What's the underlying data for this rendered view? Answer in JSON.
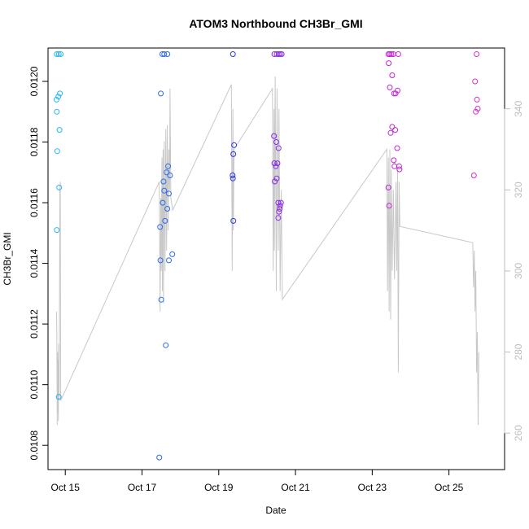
{
  "chart_data": {
    "type": "scatter",
    "title": "ATOM3 Northbound CH3Br_GMI",
    "xlabel": "Date",
    "ylabel": "CH3Br_GMI",
    "xlim": [
      14.55,
      26.45
    ],
    "ylim": [
      0.01072,
      0.01211
    ],
    "x_ticks": [
      {
        "value": 15,
        "label": "Oct 15"
      },
      {
        "value": 17,
        "label": "Oct 17"
      },
      {
        "value": 19,
        "label": "Oct 19"
      },
      {
        "value": 21,
        "label": "Oct 21"
      },
      {
        "value": 23,
        "label": "Oct 23"
      },
      {
        "value": 25,
        "label": "Oct 25"
      }
    ],
    "y_ticks": [
      {
        "value": 0.0108,
        "label": "0.0108"
      },
      {
        "value": 0.011,
        "label": "0.0110"
      },
      {
        "value": 0.0112,
        "label": "0.0112"
      },
      {
        "value": 0.0114,
        "label": "0.0114"
      },
      {
        "value": 0.0116,
        "label": "0.0116"
      },
      {
        "value": 0.0118,
        "label": "0.0118"
      },
      {
        "value": 0.012,
        "label": "0.0120"
      }
    ],
    "secondary_axis": {
      "ylim": [
        251,
        355
      ],
      "ticks": [
        {
          "value": 260,
          "label": "260"
        },
        {
          "value": 280,
          "label": "280"
        },
        {
          "value": 300,
          "label": "300"
        },
        {
          "value": 320,
          "label": "320"
        },
        {
          "value": 340,
          "label": "340"
        }
      ],
      "color": "#bebebe"
    },
    "points": [
      {
        "x": 14.78,
        "y": 0.01209,
        "color": "#29b6f6"
      },
      {
        "x": 14.83,
        "y": 0.01209,
        "color": "#29b6f6"
      },
      {
        "x": 14.88,
        "y": 0.01209,
        "color": "#29b6f6"
      },
      {
        "x": 14.77,
        "y": 0.01194,
        "color": "#29b6f6"
      },
      {
        "x": 14.82,
        "y": 0.01195,
        "color": "#29b6f6"
      },
      {
        "x": 14.86,
        "y": 0.01196,
        "color": "#29b6f6"
      },
      {
        "x": 14.78,
        "y": 0.0119,
        "color": "#29b6f6"
      },
      {
        "x": 14.85,
        "y": 0.01184,
        "color": "#29b6f6"
      },
      {
        "x": 14.79,
        "y": 0.01177,
        "color": "#29b6f6"
      },
      {
        "x": 14.84,
        "y": 0.01165,
        "color": "#29b6f6"
      },
      {
        "x": 14.78,
        "y": 0.01151,
        "color": "#29b6f6"
      },
      {
        "x": 14.83,
        "y": 0.01096,
        "color": "#29b6f6"
      },
      {
        "x": 17.45,
        "y": 0.01076,
        "color": "#2c6ce8"
      },
      {
        "x": 17.47,
        "y": 0.01152,
        "color": "#2c6ce8"
      },
      {
        "x": 17.48,
        "y": 0.01141,
        "color": "#2c6ce8"
      },
      {
        "x": 17.5,
        "y": 0.01128,
        "color": "#2c6ce8"
      },
      {
        "x": 17.49,
        "y": 0.01196,
        "color": "#2c6ce8"
      },
      {
        "x": 17.53,
        "y": 0.01209,
        "color": "#2c6ce8"
      },
      {
        "x": 17.58,
        "y": 0.01209,
        "color": "#2c6ce8"
      },
      {
        "x": 17.66,
        "y": 0.01209,
        "color": "#2c6ce8"
      },
      {
        "x": 17.54,
        "y": 0.0116,
        "color": "#2c6ce8"
      },
      {
        "x": 17.56,
        "y": 0.01167,
        "color": "#2c6ce8"
      },
      {
        "x": 17.58,
        "y": 0.01164,
        "color": "#2c6ce8"
      },
      {
        "x": 17.6,
        "y": 0.01154,
        "color": "#2c6ce8"
      },
      {
        "x": 17.62,
        "y": 0.01113,
        "color": "#2c6ce8"
      },
      {
        "x": 17.64,
        "y": 0.0117,
        "color": "#2c6ce8"
      },
      {
        "x": 17.66,
        "y": 0.01158,
        "color": "#2c6ce8"
      },
      {
        "x": 17.68,
        "y": 0.01172,
        "color": "#2c6ce8"
      },
      {
        "x": 17.7,
        "y": 0.01163,
        "color": "#2c6ce8"
      },
      {
        "x": 17.7,
        "y": 0.01141,
        "color": "#2c6ce8"
      },
      {
        "x": 17.73,
        "y": 0.01169,
        "color": "#2c6ce8"
      },
      {
        "x": 17.79,
        "y": 0.01143,
        "color": "#2c6ce8"
      },
      {
        "x": 19.37,
        "y": 0.01209,
        "color": "#2a38e0"
      },
      {
        "x": 19.38,
        "y": 0.01176,
        "color": "#2a38e0"
      },
      {
        "x": 19.4,
        "y": 0.01179,
        "color": "#2a38e0"
      },
      {
        "x": 19.36,
        "y": 0.01169,
        "color": "#2a38e0"
      },
      {
        "x": 19.37,
        "y": 0.01168,
        "color": "#2a38e0"
      },
      {
        "x": 19.38,
        "y": 0.01154,
        "color": "#2a38e0"
      },
      {
        "x": 20.45,
        "y": 0.01209,
        "color": "#8a2be2"
      },
      {
        "x": 20.51,
        "y": 0.01209,
        "color": "#8a2be2"
      },
      {
        "x": 20.56,
        "y": 0.01209,
        "color": "#8a2be2"
      },
      {
        "x": 20.6,
        "y": 0.01209,
        "color": "#8a2be2"
      },
      {
        "x": 20.64,
        "y": 0.01209,
        "color": "#8a2be2"
      },
      {
        "x": 20.44,
        "y": 0.01182,
        "color": "#8a2be2"
      },
      {
        "x": 20.5,
        "y": 0.0118,
        "color": "#8a2be2"
      },
      {
        "x": 20.56,
        "y": 0.01178,
        "color": "#8a2be2"
      },
      {
        "x": 20.45,
        "y": 0.01173,
        "color": "#8a2be2"
      },
      {
        "x": 20.49,
        "y": 0.01172,
        "color": "#8a2be2"
      },
      {
        "x": 20.53,
        "y": 0.01173,
        "color": "#8a2be2"
      },
      {
        "x": 20.46,
        "y": 0.01167,
        "color": "#8a2be2"
      },
      {
        "x": 20.51,
        "y": 0.01168,
        "color": "#8a2be2"
      },
      {
        "x": 20.55,
        "y": 0.0116,
        "color": "#8a2be2"
      },
      {
        "x": 20.6,
        "y": 0.01159,
        "color": "#8a2be2"
      },
      {
        "x": 20.62,
        "y": 0.0116,
        "color": "#8a2be2"
      },
      {
        "x": 20.57,
        "y": 0.01157,
        "color": "#8a2be2"
      },
      {
        "x": 20.59,
        "y": 0.01158,
        "color": "#8a2be2"
      },
      {
        "x": 20.55,
        "y": 0.01155,
        "color": "#8a2be2"
      },
      {
        "x": 23.42,
        "y": 0.01209,
        "color": "#c026d3"
      },
      {
        "x": 23.46,
        "y": 0.01209,
        "color": "#c026d3"
      },
      {
        "x": 23.5,
        "y": 0.01209,
        "color": "#c026d3"
      },
      {
        "x": 23.55,
        "y": 0.01209,
        "color": "#c026d3"
      },
      {
        "x": 23.68,
        "y": 0.01209,
        "color": "#c026d3"
      },
      {
        "x": 23.43,
        "y": 0.01206,
        "color": "#c026d3"
      },
      {
        "x": 23.52,
        "y": 0.01202,
        "color": "#c026d3"
      },
      {
        "x": 23.46,
        "y": 0.01198,
        "color": "#c026d3"
      },
      {
        "x": 23.57,
        "y": 0.01196,
        "color": "#c026d3"
      },
      {
        "x": 23.61,
        "y": 0.01196,
        "color": "#c026d3"
      },
      {
        "x": 23.66,
        "y": 0.01197,
        "color": "#c026d3"
      },
      {
        "x": 23.52,
        "y": 0.01185,
        "color": "#c026d3"
      },
      {
        "x": 23.48,
        "y": 0.01183,
        "color": "#c026d3"
      },
      {
        "x": 23.6,
        "y": 0.01184,
        "color": "#c026d3"
      },
      {
        "x": 23.65,
        "y": 0.01178,
        "color": "#c026d3"
      },
      {
        "x": 23.56,
        "y": 0.01174,
        "color": "#c026d3"
      },
      {
        "x": 23.58,
        "y": 0.01172,
        "color": "#c026d3"
      },
      {
        "x": 23.7,
        "y": 0.01172,
        "color": "#c026d3"
      },
      {
        "x": 23.71,
        "y": 0.01171,
        "color": "#c026d3"
      },
      {
        "x": 23.42,
        "y": 0.01165,
        "color": "#c026d3"
      },
      {
        "x": 23.44,
        "y": 0.01159,
        "color": "#c026d3"
      },
      {
        "x": 25.72,
        "y": 0.01209,
        "color": "#d930c9"
      },
      {
        "x": 25.68,
        "y": 0.012,
        "color": "#d930c9"
      },
      {
        "x": 25.73,
        "y": 0.01194,
        "color": "#d930c9"
      },
      {
        "x": 25.75,
        "y": 0.01191,
        "color": "#d930c9"
      },
      {
        "x": 25.7,
        "y": 0.0119,
        "color": "#d930c9"
      },
      {
        "x": 25.65,
        "y": 0.01169,
        "color": "#d930c9"
      }
    ],
    "secondary_line": [
      [
        14.77,
        290
      ],
      [
        14.78,
        285
      ],
      [
        14.79,
        262
      ],
      [
        14.8,
        280
      ],
      [
        14.805,
        265
      ],
      [
        14.81,
        278
      ],
      [
        14.82,
        263
      ],
      [
        14.83,
        282
      ],
      [
        14.84,
        268
      ],
      [
        14.86,
        320
      ],
      [
        14.87,
        322
      ],
      [
        14.88,
        268
      ],
      [
        17.45,
        322
      ],
      [
        17.47,
        290
      ],
      [
        17.49,
        318
      ],
      [
        17.5,
        300
      ],
      [
        17.52,
        328
      ],
      [
        17.53,
        295
      ],
      [
        17.55,
        330
      ],
      [
        17.56,
        292
      ],
      [
        17.58,
        332
      ],
      [
        17.6,
        300
      ],
      [
        17.62,
        335
      ],
      [
        17.64,
        305
      ],
      [
        17.66,
        336
      ],
      [
        17.68,
        310
      ],
      [
        17.7,
        330
      ],
      [
        17.72,
        320
      ],
      [
        17.73,
        345
      ],
      [
        17.75,
        318
      ],
      [
        17.8,
        315
      ],
      [
        19.33,
        346
      ],
      [
        19.35,
        300
      ],
      [
        19.37,
        340
      ],
      [
        19.38,
        310
      ],
      [
        19.4,
        330
      ],
      [
        20.4,
        345
      ],
      [
        20.42,
        300
      ],
      [
        20.44,
        340
      ],
      [
        20.45,
        305
      ],
      [
        20.47,
        348
      ],
      [
        20.5,
        295
      ],
      [
        20.52,
        345
      ],
      [
        20.55,
        305
      ],
      [
        20.57,
        340
      ],
      [
        20.6,
        295
      ],
      [
        20.63,
        320
      ],
      [
        20.66,
        293
      ],
      [
        23.38,
        330
      ],
      [
        23.4,
        295
      ],
      [
        23.42,
        328
      ],
      [
        23.44,
        290
      ],
      [
        23.46,
        330
      ],
      [
        23.48,
        288
      ],
      [
        23.5,
        325
      ],
      [
        23.52,
        300
      ],
      [
        23.55,
        320
      ],
      [
        23.58,
        298
      ],
      [
        23.62,
        322
      ],
      [
        23.64,
        300
      ],
      [
        23.66,
        325
      ],
      [
        23.68,
        275
      ],
      [
        23.7,
        322
      ],
      [
        23.72,
        311
      ],
      [
        25.62,
        307
      ],
      [
        25.64,
        296
      ],
      [
        25.66,
        305
      ],
      [
        25.68,
        290
      ],
      [
        25.7,
        300
      ],
      [
        25.72,
        275
      ],
      [
        25.74,
        285
      ],
      [
        25.76,
        262
      ],
      [
        25.78,
        280
      ]
    ]
  }
}
